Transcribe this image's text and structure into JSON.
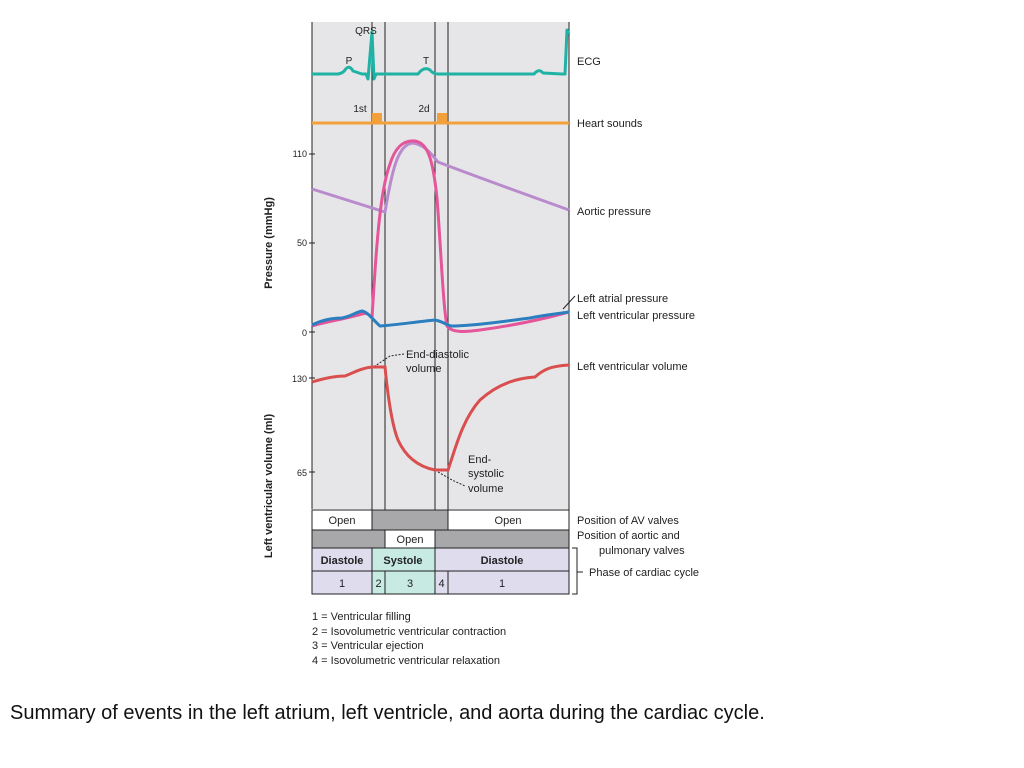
{
  "diagram": {
    "ecg": {
      "label": "ECG",
      "wave_labels": {
        "qrs": "QRS",
        "p": "P",
        "t": "T"
      },
      "color": "#1fb2a5"
    },
    "heart_sounds": {
      "label": "Heart sounds",
      "sound_labels": {
        "first": "1st",
        "second": "2d"
      },
      "color": "#f4a03a"
    },
    "pressure_axis": {
      "label": "Pressure (mmHg)",
      "ticks": [
        "110",
        "50",
        "0"
      ]
    },
    "volume_axis": {
      "label": "Left ventricular volume (ml)",
      "ticks": [
        "130",
        "65"
      ]
    },
    "curves": {
      "aortic_pressure": {
        "label": "Aortic pressure",
        "color": "#b98bcc"
      },
      "left_atrial_pressure": {
        "label": "Left atrial pressure",
        "color": "#2c7fbf"
      },
      "left_ventricular_pressure": {
        "label": "Left ventricular pressure",
        "color": "#e4559a"
      },
      "left_ventricular_volume": {
        "label": "Left ventricular volume",
        "color": "#d94e4e"
      }
    },
    "annotations": {
      "end_diastolic": {
        "line1": "End-diastolic",
        "line2": "volume"
      },
      "end_systolic": {
        "line1": "End-",
        "line2": "systolic",
        "line3": "volume"
      }
    },
    "rows": {
      "av_valves": {
        "label": "Position of AV valves",
        "open_left": "Open",
        "open_right": "Open"
      },
      "aortic_valves": {
        "label_line1": "Position of aortic and",
        "label_line2": "pulmonary valves",
        "open": "Open"
      },
      "phase": {
        "label": "Phase of cardiac cycle",
        "diastole_left": "Diastole",
        "systole": "Systole",
        "diastole_right": "Diastole"
      },
      "phase_numbers": [
        "1",
        "2",
        "3",
        "4",
        "1"
      ]
    },
    "legend": [
      "1 = Ventricular filling",
      "2 = Isovolumetric ventricular contraction",
      "3 = Ventricular ejection",
      "4 = Isovolumetric ventricular relaxation"
    ]
  },
  "caption": "Summary of events in the left atrium, left ventricle, and aorta during the cardiac cycle."
}
